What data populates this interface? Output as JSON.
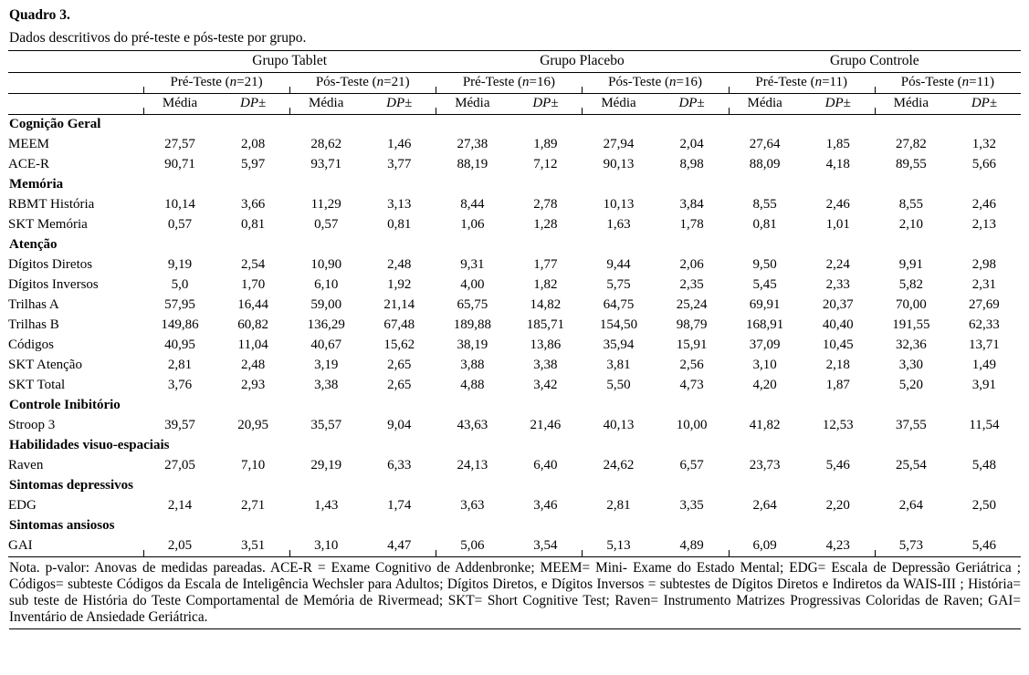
{
  "title": "Quadro 3.",
  "caption": "Dados descritivos do pré-teste e pós-teste por grupo.",
  "measures": {
    "media": "Média",
    "dp": "DP",
    "pm": "±"
  },
  "table": {
    "groups": [
      {
        "label": "Grupo Tablet",
        "subs": [
          {
            "pre": "Pré-Teste (",
            "n": "n",
            "post": "=21)"
          },
          {
            "pre": "Pós-Teste (",
            "n": "n",
            "post": "=21)"
          }
        ]
      },
      {
        "label": "Grupo Placebo",
        "subs": [
          {
            "pre": "Pré-Teste (",
            "n": "n",
            "post": "=16)"
          },
          {
            "pre": "Pós-Teste (",
            "n": "n",
            "post": "=16)"
          }
        ]
      },
      {
        "label": "Grupo Controle",
        "subs": [
          {
            "pre": "Pré-Teste (",
            "n": "n",
            "post": "=11)"
          },
          {
            "pre": "Pós-Teste (",
            "n": "n",
            "post": "=11)"
          }
        ]
      }
    ],
    "rows": [
      {
        "type": "section",
        "label": "Cognição Geral"
      },
      {
        "type": "data",
        "label": "MEEM",
        "values": [
          "27,57",
          "2,08",
          "28,62",
          "1,46",
          "27,38",
          "1,89",
          "27,94",
          "2,04",
          "27,64",
          "1,85",
          "27,82",
          "1,32"
        ]
      },
      {
        "type": "data",
        "label": "ACE-R",
        "values": [
          "90,71",
          "5,97",
          "93,71",
          "3,77",
          "88,19",
          "7,12",
          "90,13",
          "8,98",
          "88,09",
          "4,18",
          "89,55",
          "5,66"
        ]
      },
      {
        "type": "section",
        "label": "Memória"
      },
      {
        "type": "data",
        "label": "RBMT História",
        "values": [
          "10,14",
          "3,66",
          "11,29",
          "3,13",
          "8,44",
          "2,78",
          "10,13",
          "3,84",
          "8,55",
          "2,46",
          "8,55",
          "2,46"
        ]
      },
      {
        "type": "data",
        "label": "SKT Memória",
        "values": [
          "0,57",
          "0,81",
          "0,57",
          "0,81",
          "1,06",
          "1,28",
          "1,63",
          "1,78",
          "0,81",
          "1,01",
          "2,10",
          "2,13"
        ]
      },
      {
        "type": "section",
        "label": "Atenção"
      },
      {
        "type": "data",
        "label": "Dígitos Diretos",
        "values": [
          "9,19",
          "2,54",
          "10,90",
          "2,48",
          "9,31",
          "1,77",
          "9,44",
          "2,06",
          "9,50",
          "2,24",
          "9,91",
          "2,98"
        ]
      },
      {
        "type": "data",
        "label": "Dígitos Inversos",
        "values": [
          "5,0",
          "1,70",
          "6,10",
          "1,92",
          "4,00",
          "1,82",
          "5,75",
          "2,35",
          "5,45",
          "2,33",
          "5,82",
          "2,31"
        ]
      },
      {
        "type": "data",
        "label": "Trilhas A",
        "values": [
          "57,95",
          "16,44",
          "59,00",
          "21,14",
          "65,75",
          "14,82",
          "64,75",
          "25,24",
          "69,91",
          "20,37",
          "70,00",
          "27,69"
        ]
      },
      {
        "type": "data",
        "label": "Trilhas B",
        "values": [
          "149,86",
          "60,82",
          "136,29",
          "67,48",
          "189,88",
          "185,71",
          "154,50",
          "98,79",
          "168,91",
          "40,40",
          "191,55",
          "62,33"
        ]
      },
      {
        "type": "data",
        "label": "Códigos",
        "values": [
          "40,95",
          "11,04",
          "40,67",
          "15,62",
          "38,19",
          "13,86",
          "35,94",
          "15,91",
          "37,09",
          "10,45",
          "32,36",
          "13,71"
        ]
      },
      {
        "type": "data",
        "label": "SKT Atenção",
        "values": [
          "2,81",
          "2,48",
          "3,19",
          "2,65",
          "3,88",
          "3,38",
          "3,81",
          "2,56",
          "3,10",
          "2,18",
          "3,30",
          "1,49"
        ]
      },
      {
        "type": "data",
        "label": "SKT Total",
        "values": [
          "3,76",
          "2,93",
          "3,38",
          "2,65",
          "4,88",
          "3,42",
          "5,50",
          "4,73",
          "4,20",
          "1,87",
          "5,20",
          "3,91"
        ]
      },
      {
        "type": "section",
        "label": "Controle Inibitório"
      },
      {
        "type": "data",
        "label": "Stroop 3",
        "values": [
          "39,57",
          "20,95",
          "35,57",
          "9,04",
          "43,63",
          "21,46",
          "40,13",
          "10,00",
          "41,82",
          "12,53",
          "37,55",
          "11,54"
        ]
      },
      {
        "type": "section",
        "label": "Habilidades visuo-espaciais"
      },
      {
        "type": "data",
        "label": "Raven",
        "values": [
          "27,05",
          "7,10",
          "29,19",
          "6,33",
          "24,13",
          "6,40",
          "24,62",
          "6,57",
          "23,73",
          "5,46",
          "25,54",
          "5,48"
        ]
      },
      {
        "type": "section",
        "label": "Sintomas depressivos"
      },
      {
        "type": "data",
        "label": "EDG",
        "values": [
          "2,14",
          "2,71",
          "1,43",
          "1,74",
          "3,63",
          "3,46",
          "2,81",
          "3,35",
          "2,64",
          "2,20",
          "2,64",
          "2,50"
        ]
      },
      {
        "type": "section",
        "label": "Sintomas ansiosos"
      },
      {
        "type": "data",
        "label": "GAI",
        "values": [
          "2,05",
          "3,51",
          "3,10",
          "4,47",
          "5,06",
          "3,54",
          "5,13",
          "4,89",
          "6,09",
          "4,23",
          "5,73",
          "5,46"
        ]
      }
    ]
  },
  "note": "Nota. p-valor: Anovas de medidas pareadas. ACE-R = Exame Cognitivo de Addenbronke; MEEM= Mini- Exame do Estado Mental; EDG= Escala de Depressão Geriátrica ; Códigos= subteste Códigos da Escala de Inteligência Wechsler para Adultos; Dígitos Diretos, e Dígitos Inversos = subtestes de Dígitos Diretos e Indiretos da WAIS-III ; História= sub teste de História do Teste Comportamental de Memória de Rivermead; SKT= Short Cognitive Test; Raven= Instrumento Matrizes Progressivas Coloridas de Raven; GAI= Inventário de Ansiedade Geriátrica."
}
